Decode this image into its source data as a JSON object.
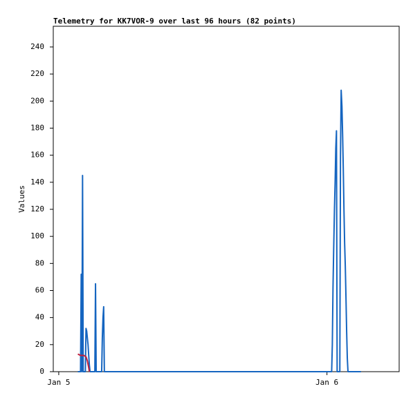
{
  "chart_data": {
    "type": "line",
    "title": "Telemetry for KK7VOR-9 over last 96 hours (82 points)",
    "y_label": "Values",
    "xlim": [
      -0.49,
      30.46
    ],
    "xticks": [
      {
        "value": 0,
        "label": "Jan 5"
      },
      {
        "value": 24,
        "label": "Jan 6"
      }
    ],
    "ylim": [
      0,
      255.3
    ],
    "yticks": [
      0,
      20,
      40,
      60,
      80,
      100,
      120,
      140,
      160,
      180,
      200,
      220,
      240
    ],
    "series": [
      {
        "color": "#1565c0",
        "x": [
          1.71,
          1.95,
          2.01,
          2.07,
          2.13,
          2.19,
          2.38,
          2.44,
          2.5,
          2.56,
          2.62,
          2.68,
          2.74,
          2.8,
          3.23,
          3.29,
          3.35,
          3.84,
          3.9,
          3.96,
          4.02,
          4.08,
          24.42,
          24.48,
          24.54,
          24.6,
          24.67,
          24.73,
          24.79,
          24.85,
          24.91,
          25.15,
          25.21,
          25.27,
          25.34,
          25.4,
          25.46,
          25.52,
          25.58,
          25.64,
          25.7,
          25.76,
          25.82,
          25.88,
          27.04
        ],
        "values": [
          0,
          0,
          72,
          0,
          145,
          0,
          0,
          32,
          30,
          25,
          20,
          12,
          5,
          0,
          0,
          65,
          0,
          0,
          25,
          40,
          48,
          0,
          0,
          20,
          62,
          90,
          120,
          140,
          165,
          178,
          0,
          0,
          160,
          208,
          196,
          175,
          150,
          120,
          95,
          78,
          55,
          30,
          10,
          0,
          0
        ]
      },
      {
        "color": "#c0203c",
        "x": [
          1.71,
          1.95,
          2.25,
          2.44,
          2.56,
          2.68,
          2.74
        ],
        "values": [
          13,
          12,
          12,
          11,
          8,
          3,
          0
        ]
      }
    ]
  }
}
